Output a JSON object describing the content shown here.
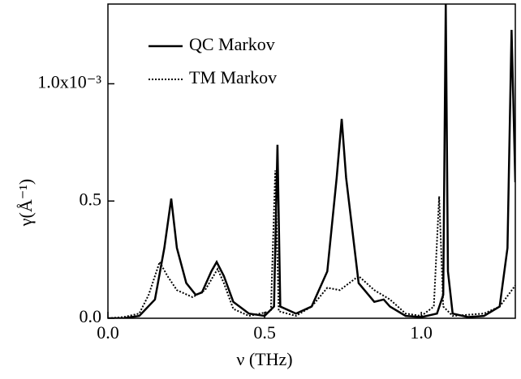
{
  "chart_data": {
    "type": "line",
    "xlabel": "ν (THz)",
    "ylabel": "γ(Å⁻¹)",
    "xlim": [
      0,
      1.3
    ],
    "ylim": [
      0,
      1.34
    ],
    "xticks": [
      {
        "value": 0,
        "label": "0.0"
      },
      0.5,
      {
        "value": 1.0,
        "label": "1.0"
      }
    ],
    "yticks": [
      {
        "value": 0,
        "label": "0.0"
      },
      0.5,
      {
        "value": 1.0,
        "label": "1.0x10⁻³"
      }
    ],
    "legend": "upper left",
    "series": [
      {
        "name": "QC Markov",
        "color": "#000000",
        "style": "solid",
        "x": [
          0,
          0.05,
          0.1,
          0.15,
          0.18,
          0.202,
          0.22,
          0.25,
          0.28,
          0.3,
          0.33,
          0.347,
          0.37,
          0.4,
          0.45,
          0.5,
          0.53,
          0.541,
          0.55,
          0.6,
          0.65,
          0.7,
          0.73,
          0.746,
          0.76,
          0.8,
          0.85,
          0.88,
          0.9,
          0.95,
          1.0,
          1.05,
          1.07,
          1.078,
          1.085,
          1.1,
          1.15,
          1.2,
          1.25,
          1.275,
          1.288,
          1.3
        ],
        "values": [
          0,
          0,
          0.01,
          0.08,
          0.3,
          0.51,
          0.3,
          0.15,
          0.1,
          0.11,
          0.2,
          0.24,
          0.18,
          0.07,
          0.02,
          0.01,
          0.05,
          0.74,
          0.05,
          0.02,
          0.05,
          0.2,
          0.6,
          0.85,
          0.6,
          0.15,
          0.07,
          0.08,
          0.05,
          0.01,
          0.005,
          0.02,
          0.1,
          1.34,
          0.2,
          0.02,
          0.005,
          0.01,
          0.05,
          0.3,
          1.23,
          0.58
        ]
      },
      {
        "name": "TM Markov",
        "color": "#000000",
        "style": "dotted",
        "x": [
          0,
          0.05,
          0.1,
          0.13,
          0.165,
          0.19,
          0.22,
          0.27,
          0.31,
          0.35,
          0.37,
          0.4,
          0.45,
          0.52,
          0.534,
          0.545,
          0.6,
          0.65,
          0.7,
          0.74,
          0.8,
          0.85,
          0.9,
          0.95,
          1.0,
          1.04,
          1.057,
          1.07,
          1.1,
          1.2,
          1.25,
          1.3
        ],
        "values": [
          0,
          0.005,
          0.02,
          0.1,
          0.24,
          0.18,
          0.12,
          0.09,
          0.12,
          0.21,
          0.15,
          0.04,
          0.01,
          0.03,
          0.63,
          0.03,
          0.01,
          0.05,
          0.13,
          0.12,
          0.18,
          0.12,
          0.08,
          0.02,
          0.01,
          0.05,
          0.52,
          0.05,
          0.01,
          0.02,
          0.05,
          0.14
        ]
      }
    ]
  }
}
